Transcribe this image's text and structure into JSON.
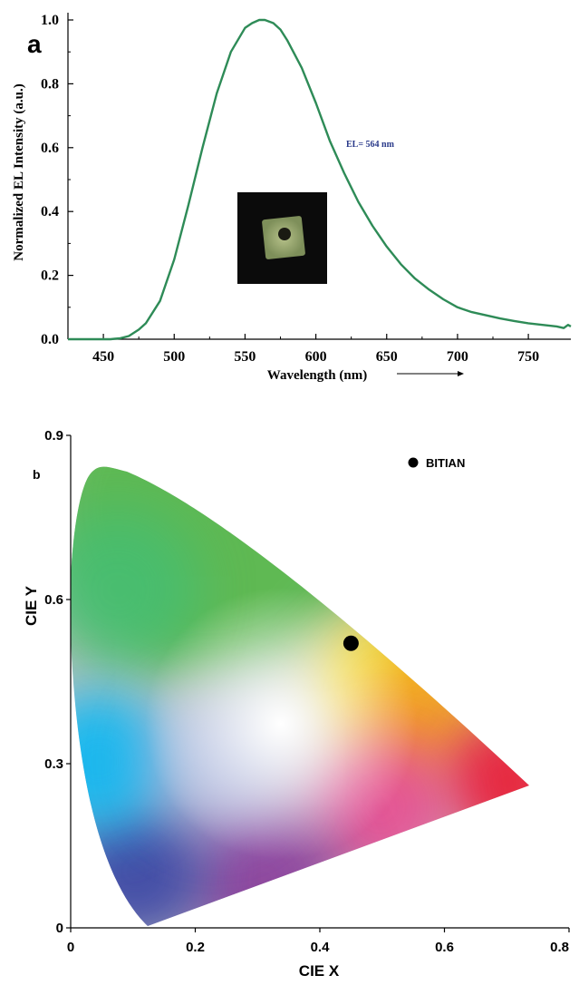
{
  "chart_data": [
    {
      "panel_label": "a",
      "type": "line",
      "xlabel": "Wavelength (nm)",
      "ylabel": "Normalized EL Intensity (a.u.)",
      "xlim": [
        425,
        780
      ],
      "ylim": [
        0.0,
        1.0
      ],
      "xticks": [
        "450",
        "500",
        "550",
        "600",
        "650",
        "700",
        "750"
      ],
      "yticks": [
        "0.0",
        "0.2",
        "0.4",
        "0.6",
        "0.8",
        "1.0"
      ],
      "annotation": "EL= 564 nm",
      "inset": "device photo",
      "series": [
        {
          "color": "#2e8b57",
          "x": [
            425,
            440,
            455,
            462,
            468,
            475,
            480,
            490,
            500,
            510,
            520,
            530,
            540,
            550,
            555,
            560,
            564,
            570,
            575,
            580,
            590,
            600,
            610,
            620,
            630,
            640,
            650,
            660,
            670,
            680,
            690,
            700,
            710,
            720,
            730,
            740,
            750,
            760,
            770,
            775,
            778,
            780
          ],
          "y": [
            0.0,
            0.0,
            0.0,
            0.003,
            0.01,
            0.03,
            0.05,
            0.12,
            0.25,
            0.42,
            0.6,
            0.77,
            0.9,
            0.975,
            0.99,
            1.0,
            1.0,
            0.99,
            0.97,
            0.935,
            0.85,
            0.74,
            0.62,
            0.52,
            0.43,
            0.355,
            0.29,
            0.235,
            0.19,
            0.155,
            0.125,
            0.1,
            0.085,
            0.075,
            0.065,
            0.057,
            0.05,
            0.045,
            0.04,
            0.035,
            0.045,
            0.04
          ]
        }
      ]
    },
    {
      "panel_label": "b",
      "type": "scatter",
      "xlabel": "CIE X",
      "ylabel": "CIE Y",
      "xlim": [
        0.0,
        0.8
      ],
      "ylim": [
        0.0,
        0.9
      ],
      "xticks": [
        "0",
        "0.2",
        "0.4",
        "0.6",
        "0.8"
      ],
      "yticks": [
        "0",
        "0.3",
        "0.6",
        "0.9"
      ],
      "legend": "BITIAN",
      "legend_position": "top-right",
      "points": [
        {
          "x": 0.45,
          "y": 0.52
        }
      ]
    }
  ]
}
